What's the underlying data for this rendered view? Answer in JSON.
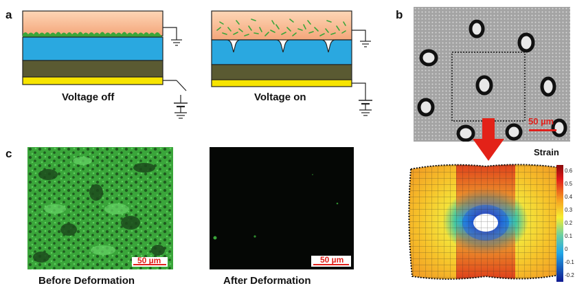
{
  "panels": {
    "a": {
      "letter": "a",
      "left_caption": "Voltage off",
      "right_caption": "Voltage on"
    },
    "b": {
      "letter": "b",
      "scalebar": "50 µm",
      "strain_label": "Strain",
      "colorbar_ticks": [
        "0.6",
        "0.5",
        "0.4",
        "0.3",
        "0.2",
        "0.1",
        "0",
        "-0.1",
        "-0.2"
      ],
      "colorbar_range": [
        -0.2,
        0.6
      ]
    },
    "c": {
      "letter": "c",
      "left_caption": "Before Deformation",
      "right_caption": "After Deformation",
      "left_scalebar": "50 µm",
      "right_scalebar": "50 µm"
    }
  },
  "colors": {
    "orange_layer": "#f6b98c",
    "blue_layer": "#2aa8e0",
    "olive_layer": "#5a5a32",
    "yellow_layer": "#f7e400",
    "green_cells": "#3aa53a",
    "arrow_red": "#e32218"
  }
}
